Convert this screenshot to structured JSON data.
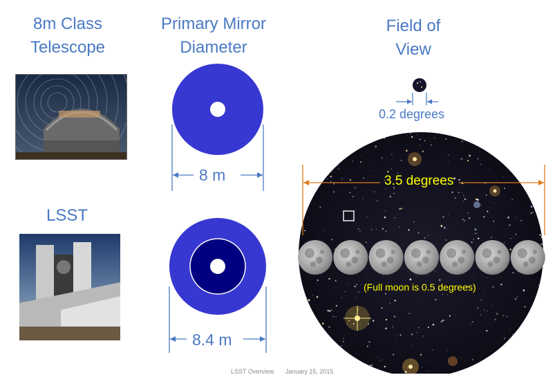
{
  "columns": {
    "telescope_8m": {
      "title": "8m Class\nTelescope"
    },
    "lsst": {
      "title": "LSST"
    },
    "mirror": {
      "title": "Primary Mirror\nDiameter"
    },
    "field": {
      "title": "Field of\nView"
    }
  },
  "mirrors": {
    "small": {
      "diameter_label": "8 m",
      "color": "#3737d2"
    },
    "large": {
      "diameter_label": "8.4 m",
      "color": "#3737d2",
      "inner_color": "#000080"
    }
  },
  "field_of_view": {
    "small_label": "0.2 degrees",
    "large_label": "3.5 degrees",
    "moon_note": "(Full moon is 0.5 degrees)",
    "moon_count": 7,
    "label_color": "#ffff00",
    "arrow_color": "#e07b1a"
  },
  "footer": {
    "left": "LSST Overview",
    "right": "January 15, 2015"
  }
}
